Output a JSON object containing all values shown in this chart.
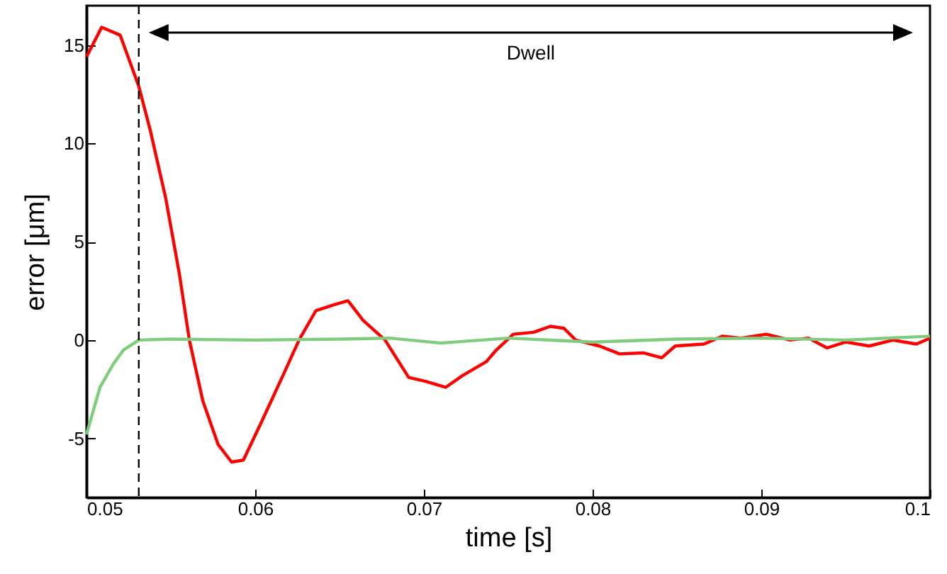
{
  "chart_data": {
    "type": "line",
    "xlabel": "time [s]",
    "ylabel": "error [μm]",
    "xlim": [
      0.05,
      0.1
    ],
    "ylim": [
      -8,
      17
    ],
    "xticks": [
      0.05,
      0.06,
      0.07,
      0.08,
      0.09,
      0.1
    ],
    "yticks": [
      -5,
      0,
      5,
      10,
      15
    ],
    "grid": false,
    "line_style": "solid",
    "marker": "none",
    "series": [
      {
        "color": "#ff0000",
        "x": [
          0.05,
          0.0509,
          0.052,
          0.0531,
          0.0538,
          0.0547,
          0.0555,
          0.0561,
          0.0569,
          0.0578,
          0.0586,
          0.0593,
          0.0603,
          0.0617,
          0.0626,
          0.0636,
          0.0647,
          0.0655,
          0.0664,
          0.0677,
          0.0691,
          0.0701,
          0.0713,
          0.0723,
          0.0737,
          0.0743,
          0.0753,
          0.0765,
          0.0775,
          0.0783,
          0.079,
          0.0804,
          0.0816,
          0.083,
          0.0841,
          0.0849,
          0.0866,
          0.0877,
          0.0888,
          0.0903,
          0.0917,
          0.0928,
          0.0939,
          0.095,
          0.0964,
          0.0978,
          0.0992,
          0.1
        ],
        "values": [
          14.4,
          15.9,
          15.5,
          12.9,
          10.6,
          7.2,
          3.4,
          0,
          -3.1,
          -5.3,
          -6.2,
          -6.1,
          -4.3,
          -1.7,
          0,
          1.5,
          1.8,
          2,
          1,
          0,
          -1.9,
          -2.1,
          -2.4,
          -1.8,
          -1.1,
          -0.5,
          0.3,
          0.4,
          0.7,
          0.6,
          0,
          -0.3,
          -0.7,
          -0.65,
          -0.9,
          -0.3,
          -0.2,
          0.2,
          0.1,
          0.3,
          0,
          0.1,
          -0.4,
          -0.1,
          -0.3,
          0,
          -0.2,
          0.1
        ]
      },
      {
        "color": "#7fcc7f",
        "x": [
          0.05,
          0.0508,
          0.0516,
          0.0522,
          0.0531,
          0.055,
          0.06,
          0.065,
          0.068,
          0.071,
          0.075,
          0.08,
          0.085,
          0.09,
          0.095,
          0.1
        ],
        "values": [
          -4.8,
          -2.4,
          -1.2,
          -0.5,
          0,
          0.05,
          0,
          0.05,
          0.1,
          -0.15,
          0.1,
          -0.1,
          0.05,
          0.1,
          0,
          0.2
        ]
      }
    ],
    "ref_lines": [
      {
        "axis": "x",
        "value": 0.0531,
        "line_style": "dashed",
        "color": "#000000"
      }
    ],
    "annotations": [
      "Dwell"
    ]
  }
}
